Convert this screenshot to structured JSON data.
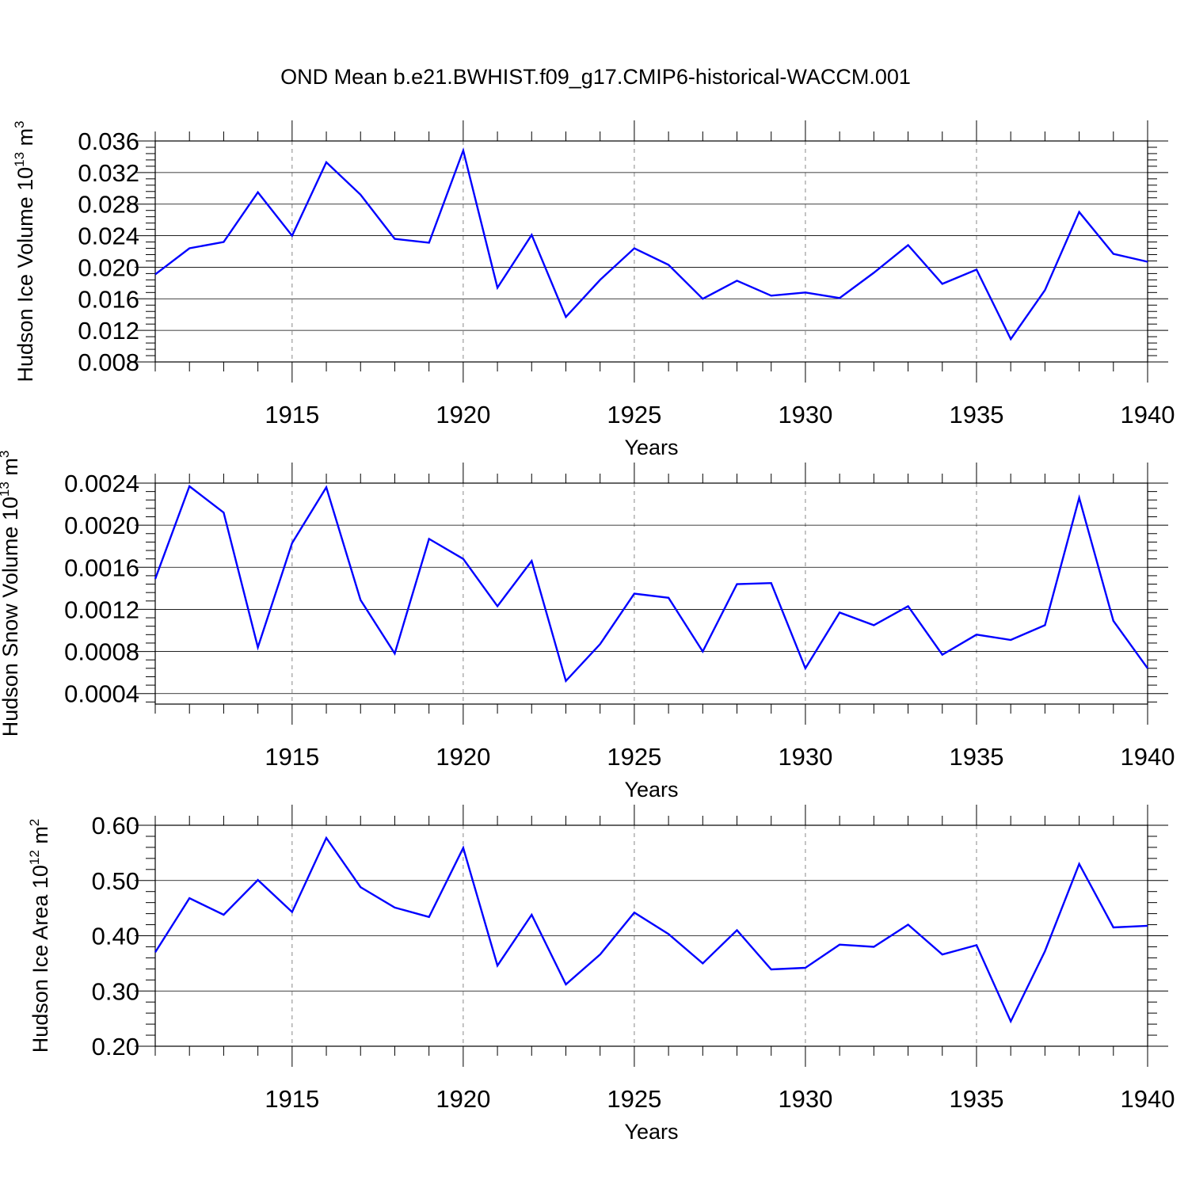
{
  "title": "OND Mean b.e21.BWHIST.f09_g17.CMIP6-historical-WACCM.001",
  "line_color": "#0000ff",
  "grid_color": "#888888",
  "chart_data": [
    {
      "type": "line",
      "ylabel_main": "Hudson Ice Volume 10",
      "ylabel_exp": "13",
      "ylabel_unit": "m",
      "ylabel_unit_exp": "3",
      "xlabel": "Years",
      "xlim": [
        1911,
        1940
      ],
      "ylim": [
        0.008,
        0.036
      ],
      "yticks": [
        0.008,
        0.012,
        0.016,
        0.02,
        0.024,
        0.028,
        0.032,
        0.036
      ],
      "ytick_labels": [
        "0.008",
        "0.012",
        "0.016",
        "0.020",
        "0.024",
        "0.028",
        "0.032",
        "0.036"
      ],
      "xticks": [
        1915,
        1920,
        1925,
        1930,
        1935,
        1940
      ],
      "xtick_labels": [
        "1915",
        "1920",
        "1925",
        "1930",
        "1935",
        "1940"
      ],
      "grid_x": true,
      "x": [
        1911,
        1912,
        1913,
        1914,
        1915,
        1916,
        1917,
        1918,
        1919,
        1920,
        1921,
        1922,
        1923,
        1924,
        1925,
        1926,
        1927,
        1928,
        1929,
        1930,
        1931,
        1932,
        1933,
        1934,
        1935,
        1936,
        1937,
        1938,
        1939,
        1940
      ],
      "y": [
        0.0191,
        0.0224,
        0.0232,
        0.0295,
        0.024,
        0.0333,
        0.0292,
        0.0236,
        0.0231,
        0.0348,
        0.0174,
        0.0241,
        0.0137,
        0.0184,
        0.0224,
        0.0203,
        0.016,
        0.0183,
        0.0164,
        0.0168,
        0.0161,
        0.0193,
        0.0228,
        0.0179,
        0.0197,
        0.0109,
        0.0171,
        0.027,
        0.0217,
        0.0207
      ]
    },
    {
      "type": "line",
      "ylabel_main": "Hudson Snow Volume 10",
      "ylabel_exp": "13",
      "ylabel_unit": "m",
      "ylabel_unit_exp": "3",
      "xlabel": "Years",
      "xlim": [
        1911,
        1940
      ],
      "ylim": [
        0.0003,
        0.0024
      ],
      "yticks": [
        0.0004,
        0.0008,
        0.0012,
        0.0016,
        0.002,
        0.0024
      ],
      "ytick_labels": [
        "0.0004",
        "0.0008",
        "0.0012",
        "0.0016",
        "0.0020",
        "0.0024"
      ],
      "xticks": [
        1915,
        1920,
        1925,
        1930,
        1935,
        1940
      ],
      "xtick_labels": [
        "1915",
        "1920",
        "1925",
        "1930",
        "1935",
        "1940"
      ],
      "grid_x": true,
      "x": [
        1911,
        1912,
        1913,
        1914,
        1915,
        1916,
        1917,
        1918,
        1919,
        1920,
        1921,
        1922,
        1923,
        1924,
        1925,
        1926,
        1927,
        1928,
        1929,
        1930,
        1931,
        1932,
        1933,
        1934,
        1935,
        1936,
        1937,
        1938,
        1939,
        1940
      ],
      "y": [
        0.00149,
        0.00237,
        0.00212,
        0.00084,
        0.00183,
        0.00236,
        0.00129,
        0.00078,
        0.00187,
        0.00168,
        0.00123,
        0.00166,
        0.00052,
        0.00087,
        0.00135,
        0.00131,
        0.0008,
        0.00144,
        0.00145,
        0.00064,
        0.00117,
        0.00105,
        0.00123,
        0.00077,
        0.00096,
        0.00091,
        0.00105,
        0.00226,
        0.00109,
        0.00064
      ]
    },
    {
      "type": "line",
      "ylabel_main": "Hudson Ice Area 10",
      "ylabel_exp": "12",
      "ylabel_unit": "m",
      "ylabel_unit_exp": "2",
      "xlabel": "Years",
      "xlim": [
        1911,
        1940
      ],
      "ylim": [
        0.2,
        0.6
      ],
      "yticks": [
        0.2,
        0.3,
        0.4,
        0.5,
        0.6
      ],
      "ytick_labels": [
        "0.20",
        "0.30",
        "0.40",
        "0.50",
        "0.60"
      ],
      "xticks": [
        1915,
        1920,
        1925,
        1930,
        1935,
        1940
      ],
      "xtick_labels": [
        "1915",
        "1920",
        "1925",
        "1930",
        "1935",
        "1940"
      ],
      "grid_x": true,
      "x": [
        1911,
        1912,
        1913,
        1914,
        1915,
        1916,
        1917,
        1918,
        1919,
        1920,
        1921,
        1922,
        1923,
        1924,
        1925,
        1926,
        1927,
        1928,
        1929,
        1930,
        1931,
        1932,
        1933,
        1934,
        1935,
        1936,
        1937,
        1938,
        1939,
        1940
      ],
      "y": [
        0.37,
        0.468,
        0.438,
        0.501,
        0.443,
        0.577,
        0.488,
        0.451,
        0.434,
        0.559,
        0.346,
        0.438,
        0.312,
        0.366,
        0.442,
        0.403,
        0.35,
        0.41,
        0.339,
        0.342,
        0.384,
        0.38,
        0.42,
        0.366,
        0.383,
        0.245,
        0.372,
        0.53,
        0.415,
        0.418
      ]
    }
  ]
}
